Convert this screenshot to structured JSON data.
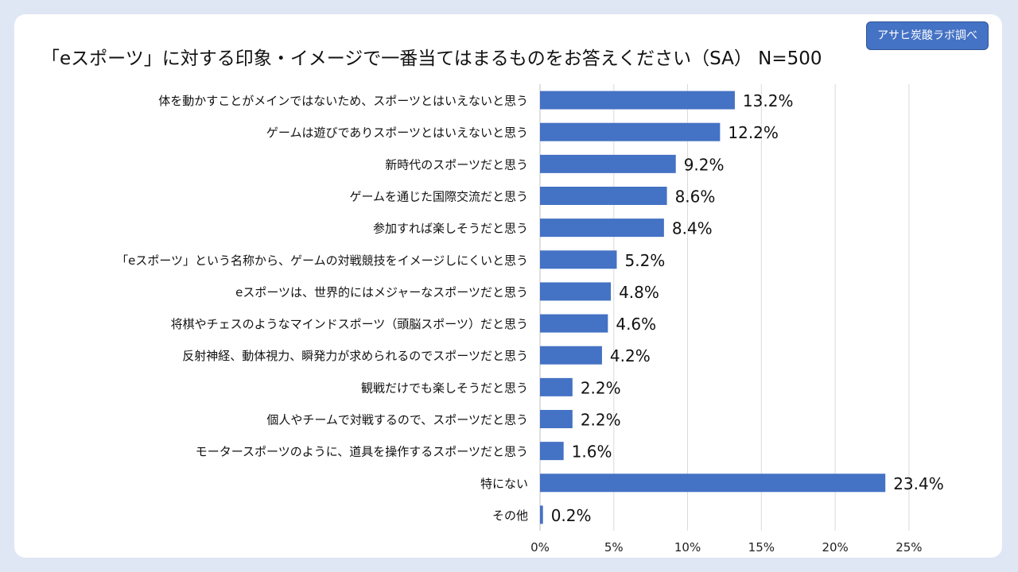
{
  "header": {
    "title": "「eスポーツ」に対する印象・イメージで一番当てはまるものをお答えください（SA） N=500",
    "badge": "アサヒ炭酸ラボ調べ"
  },
  "colors": {
    "bar": "#4472c4",
    "badge": "#4472c4",
    "background": "#dfe6f4",
    "card": "#ffffff",
    "grid": "#d9d9d9"
  },
  "chart_data": {
    "type": "bar",
    "orientation": "horizontal",
    "title": "「eスポーツ」に対する印象・イメージで一番当てはまるものをお答えください（SA） N=500",
    "categories": [
      "体を動かすことがメインではないため、スポーツとはいえないと思う",
      "ゲームは遊びでありスポーツとはいえないと思う",
      "新時代のスポーツだと思う",
      "ゲームを通じた国際交流だと思う",
      "参加すれば楽しそうだと思う",
      "「eスポーツ」という名称から、ゲームの対戦競技をイメージしにくいと思う",
      "eスポーツは、世界的にはメジャーなスポーツだと思う",
      "将棋やチェスのようなマインドスポーツ（頭脳スポーツ）だと思う",
      "反射神経、動体視力、瞬発力が求められるのでスポーツだと思う",
      "観戦だけでも楽しそうだと思う",
      "個人やチームで対戦するので、スポーツだと思う",
      "モータースポーツのように、道具を操作するスポーツだと思う",
      "特にない",
      "その他"
    ],
    "values": [
      13.2,
      12.2,
      9.2,
      8.6,
      8.4,
      5.2,
      4.8,
      4.6,
      4.2,
      2.2,
      2.2,
      1.6,
      23.4,
      0.2
    ],
    "value_labels": [
      "13.2%",
      "12.2%",
      "9.2%",
      "8.6%",
      "8.4%",
      "5.2%",
      "4.8%",
      "4.6%",
      "4.2%",
      "2.2%",
      "2.2%",
      "1.6%",
      "23.4%",
      "0.2%"
    ],
    "xlim": [
      0,
      27
    ],
    "xticks": [
      0,
      5,
      10,
      15,
      20,
      25
    ],
    "xtick_labels": [
      "0%",
      "5%",
      "10%",
      "15%",
      "20%",
      "25%"
    ],
    "grid": true,
    "xlabel": "",
    "ylabel": ""
  }
}
